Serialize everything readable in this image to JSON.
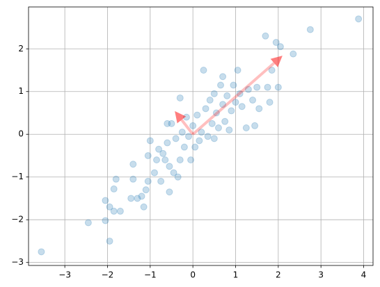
{
  "chart_data": {
    "type": "scatter",
    "series": [
      {
        "color": "#1f77b4",
        "x": [
          -3.55,
          -2.45,
          -2.05,
          -1.95,
          -1.85,
          -1.7,
          -1.95,
          -2.05,
          -1.85,
          -1.8,
          -1.45,
          -1.4,
          -1.4,
          -1.3,
          -1.2,
          -1.15,
          -1.1,
          -1.05,
          -1.05,
          -1.0,
          -0.9,
          -0.85,
          -0.8,
          -0.75,
          -0.7,
          -0.65,
          -0.6,
          -0.6,
          -0.55,
          -0.5,
          -0.55,
          -0.45,
          -0.4,
          -0.35,
          -0.3,
          -0.3,
          -0.25,
          -0.2,
          -0.15,
          -0.1,
          -0.05,
          0.0,
          0.05,
          0.1,
          0.15,
          0.2,
          0.25,
          0.3,
          0.35,
          0.4,
          0.45,
          0.5,
          0.5,
          0.55,
          0.6,
          0.65,
          0.7,
          0.7,
          0.75,
          0.8,
          0.85,
          0.9,
          0.95,
          1.0,
          1.05,
          1.1,
          1.15,
          1.25,
          1.3,
          1.4,
          1.45,
          1.5,
          1.55,
          1.7,
          1.75,
          1.8,
          1.85,
          1.95,
          2.0,
          2.05,
          2.35,
          2.75,
          3.88
        ],
        "y": [
          -2.75,
          -2.07,
          -2.02,
          -2.5,
          -1.8,
          -1.8,
          -1.7,
          -1.55,
          -1.28,
          -1.05,
          -1.5,
          -1.05,
          -0.7,
          -1.5,
          -1.45,
          -1.7,
          -1.3,
          -1.1,
          -0.5,
          -0.15,
          -0.9,
          -0.6,
          -0.35,
          -1.1,
          -0.45,
          -0.6,
          -0.2,
          0.25,
          -0.75,
          0.25,
          -1.35,
          -0.9,
          -0.1,
          -1.0,
          0.85,
          -0.6,
          0.05,
          -0.3,
          0.4,
          -0.05,
          -0.6,
          0.2,
          -0.3,
          0.45,
          -0.15,
          0.05,
          1.5,
          0.6,
          -0.05,
          0.8,
          0.25,
          0.95,
          -0.1,
          0.5,
          0.15,
          1.15,
          0.7,
          1.35,
          0.3,
          0.9,
          0.1,
          0.55,
          1.15,
          0.75,
          1.5,
          0.95,
          0.65,
          0.15,
          1.05,
          0.8,
          0.2,
          1.1,
          0.6,
          2.3,
          1.1,
          0.75,
          1.5,
          2.15,
          1.1,
          2.05,
          1.88,
          2.45,
          2.7
        ]
      }
    ],
    "arrows": [
      {
        "color": "#ff0000",
        "x": [
          0,
          2.02
        ],
        "y": [
          0,
          1.77
        ]
      },
      {
        "color": "#ff0000",
        "x": [
          0,
          -0.36
        ],
        "y": [
          0,
          0.46
        ]
      }
    ],
    "xlim": [
      -3.85,
      4.22
    ],
    "ylim": [
      -3.07,
      2.98
    ],
    "xticks": [
      {
        "value": -3,
        "label": "−3"
      },
      {
        "value": -2,
        "label": "−2"
      },
      {
        "value": -1,
        "label": "−1"
      },
      0,
      1,
      2,
      3,
      4
    ],
    "yticks": [
      {
        "value": -3,
        "label": "−3"
      },
      {
        "value": -2,
        "label": "−2"
      },
      {
        "value": -1,
        "label": "−1"
      },
      0,
      1,
      2
    ],
    "grid": true
  }
}
